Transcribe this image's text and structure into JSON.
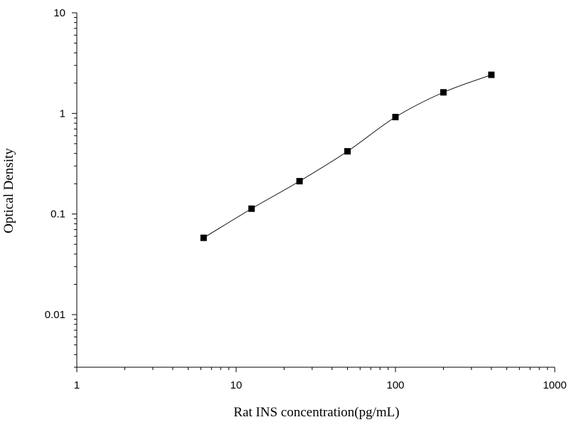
{
  "chart_data": {
    "type": "scatter",
    "title": "",
    "xlabel": "Rat INS concentration(pg/mL)",
    "ylabel": "Optical Density",
    "x_scale": "log",
    "y_scale": "log",
    "xlim": [
      1,
      1000
    ],
    "ylim": [
      0.003,
      10
    ],
    "x_ticks": [
      1,
      10,
      100,
      1000
    ],
    "x_tick_labels": [
      "1",
      "10",
      "100",
      "1000"
    ],
    "y_ticks": [
      0.01,
      0.1,
      1,
      10
    ],
    "y_tick_labels": [
      "0.01",
      "0.1",
      "1",
      "10"
    ],
    "grid": false,
    "legend": "none",
    "fit_curve": true,
    "series": [
      {
        "x": [
          6.25,
          12.5,
          25,
          50,
          100,
          200,
          400
        ],
        "y": [
          0.058,
          0.113,
          0.212,
          0.42,
          0.92,
          1.62,
          2.42
        ]
      }
    ],
    "colors": {
      "marker": "#000000",
      "curve": "#000000",
      "axis": "#000000"
    }
  }
}
